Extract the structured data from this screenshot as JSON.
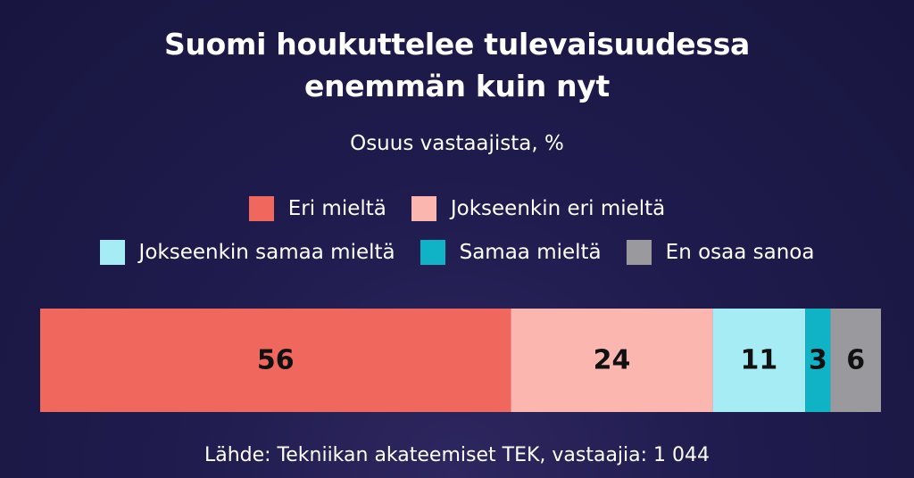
{
  "chart_data": {
    "type": "bar",
    "orientation": "horizontal-stacked",
    "title_lines": [
      "Suomi houkuttelee tulevaisuudessa",
      "enemmän kuin nyt"
    ],
    "subtitle": "Osuus vastaajista, %",
    "source": "Lähde: Tekniikan akateemiset TEK, vastaajia: 1 044",
    "xlim": [
      0,
      100
    ],
    "grid": false,
    "legend_placement": "top",
    "legend_rows": [
      [
        0,
        1
      ],
      [
        2,
        3,
        4
      ]
    ],
    "series": [
      {
        "name": "Eri mieltä",
        "value": 56,
        "label": "56",
        "color": "#f0675d"
      },
      {
        "name": "Jokseenkin eri mieltä",
        "value": 24,
        "label": "24",
        "color": "#fbb6b0"
      },
      {
        "name": "Jokseenkin samaa mieltä",
        "value": 11,
        "label": "11",
        "color": "#a6ecf5"
      },
      {
        "name": "Samaa mieltä",
        "value": 3,
        "label": "3",
        "color": "#10b3c6"
      },
      {
        "name": "En osaa sanoa",
        "value": 6,
        "label": "6",
        "color": "#9a9a9e"
      }
    ]
  }
}
